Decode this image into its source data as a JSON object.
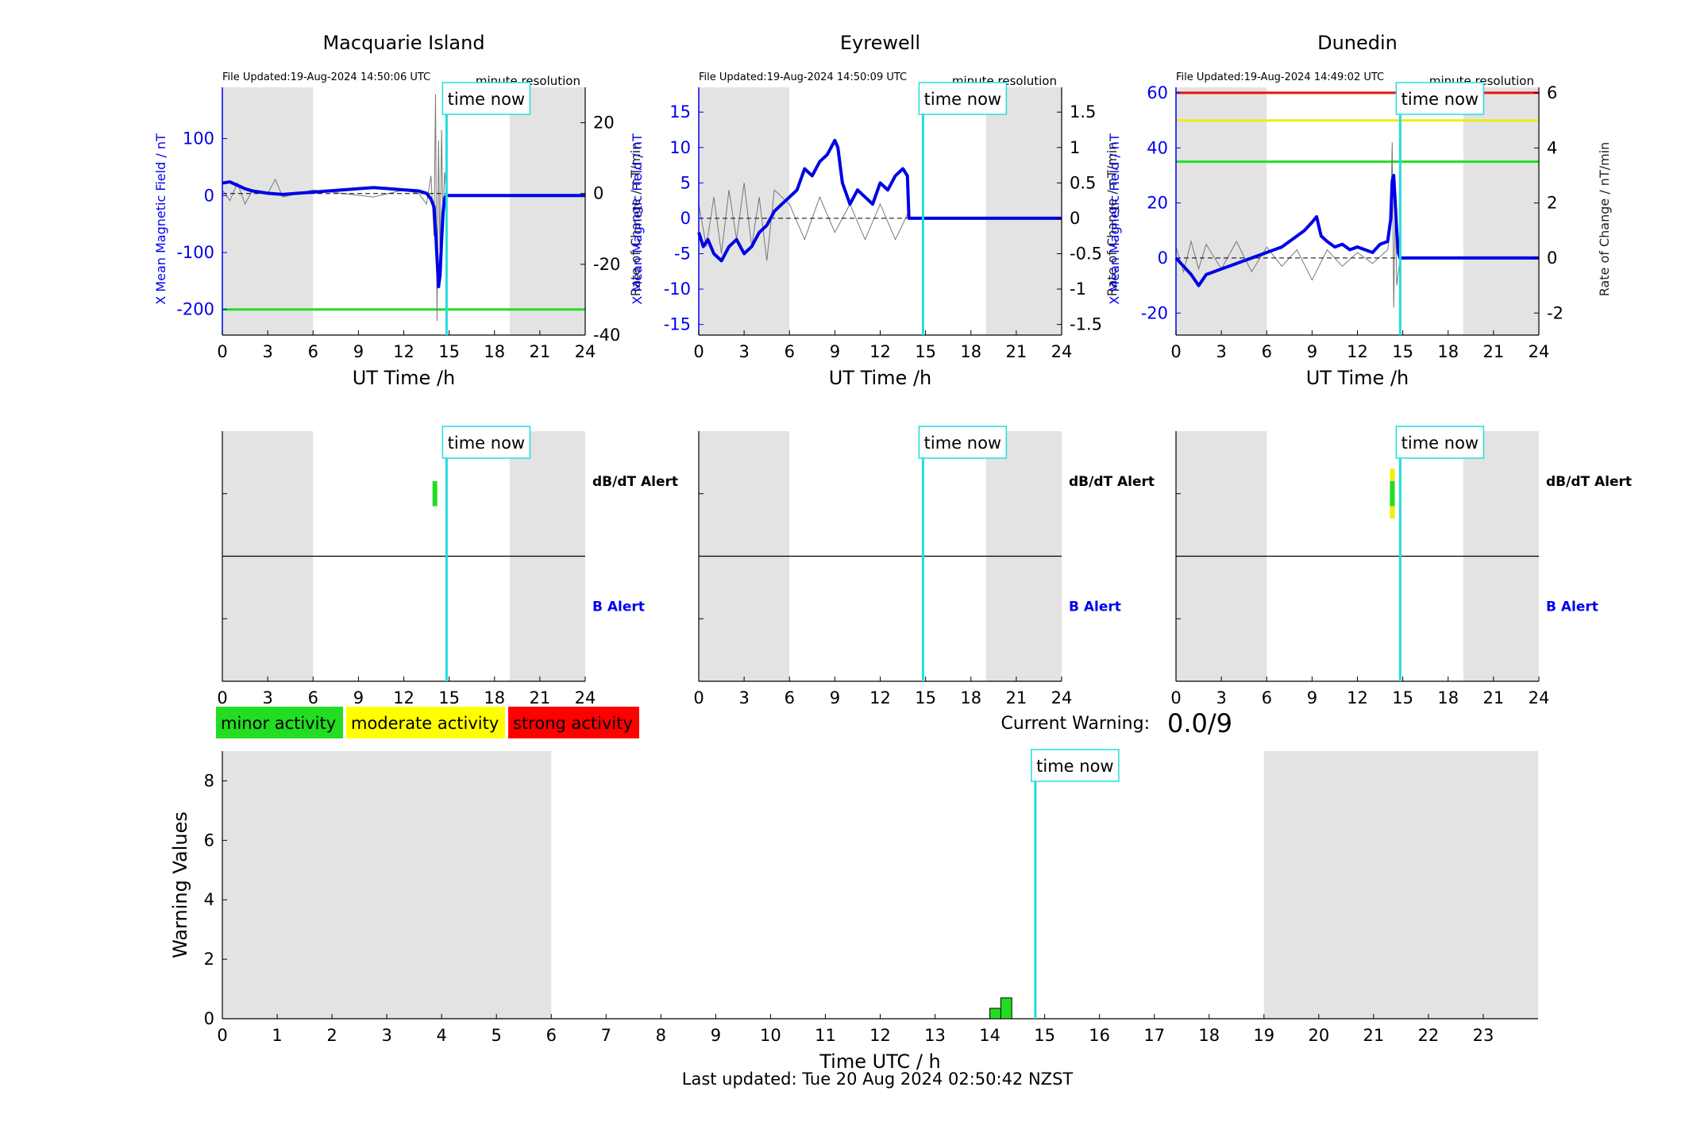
{
  "stations": [
    {
      "name": "Macquarie Island",
      "file_updated": "File Updated:19-Aug-2024 14:50:06 UTC",
      "resolution": "minute resolution",
      "ylim": [
        -245,
        190
      ],
      "yticks": [
        100,
        0,
        -100,
        -200
      ],
      "rylim": [
        -40,
        30
      ],
      "ryticks": [
        20,
        0,
        -20,
        -40
      ],
      "ylabel": "X Mean Magnetic Field / nT",
      "rlabel": "Rate of Change / nT/min",
      "threshold_lines": [
        {
          "value": -200,
          "color": "#22dd22"
        }
      ],
      "field": [
        [
          0,
          22
        ],
        [
          0.5,
          24
        ],
        [
          1,
          18
        ],
        [
          1.5,
          12
        ],
        [
          2,
          8
        ],
        [
          3,
          4
        ],
        [
          4,
          2
        ],
        [
          5,
          4
        ],
        [
          6,
          6
        ],
        [
          7,
          8
        ],
        [
          8,
          10
        ],
        [
          9,
          12
        ],
        [
          10,
          14
        ],
        [
          11,
          12
        ],
        [
          12,
          10
        ],
        [
          13,
          8
        ],
        [
          13.5,
          4
        ],
        [
          13.8,
          -6
        ],
        [
          14.0,
          -20
        ],
        [
          14.1,
          -60
        ],
        [
          14.2,
          -110
        ],
        [
          14.3,
          -160
        ],
        [
          14.4,
          -140
        ],
        [
          14.5,
          -80
        ],
        [
          14.6,
          -30
        ],
        [
          14.7,
          -5
        ],
        [
          14.83,
          0
        ],
        [
          24,
          0
        ]
      ],
      "rate": [
        [
          0,
          1
        ],
        [
          0.5,
          -2
        ],
        [
          1,
          3
        ],
        [
          1.5,
          -3
        ],
        [
          2,
          1
        ],
        [
          3,
          0
        ],
        [
          3.5,
          4
        ],
        [
          4,
          -1
        ],
        [
          5,
          0
        ],
        [
          6,
          1
        ],
        [
          8,
          0
        ],
        [
          10,
          -1
        ],
        [
          12,
          1
        ],
        [
          13,
          0
        ],
        [
          13.5,
          -3
        ],
        [
          13.8,
          5
        ],
        [
          14.0,
          -12
        ],
        [
          14.1,
          28
        ],
        [
          14.2,
          -36
        ],
        [
          14.3,
          15
        ],
        [
          14.4,
          -20
        ],
        [
          14.5,
          18
        ],
        [
          14.6,
          -8
        ],
        [
          14.7,
          6
        ],
        [
          14.83,
          0
        ]
      ],
      "dbdt_alert": {
        "start": 13.9,
        "end": 14.2,
        "levels": [
          "#22dd22"
        ]
      },
      "b_alert": null
    },
    {
      "name": "Eyrewell",
      "file_updated": "File Updated:19-Aug-2024 14:50:09 UTC",
      "resolution": "minute resolution",
      "ylim": [
        -16.5,
        18.5
      ],
      "yticks": [
        15,
        10,
        5,
        0,
        -5,
        -10,
        -15
      ],
      "rylim": [
        -1.65,
        1.85
      ],
      "ryticks": [
        1.5,
        1,
        0.5,
        0,
        -0.5,
        -1,
        -1.5
      ],
      "rytick_labels": [
        "1.5",
        "1",
        "0.5",
        "0",
        "-0.5",
        "-1",
        "-1.5"
      ],
      "ylabel": "X Mean Magnetic Field / nT",
      "rlabel": "Rate of Change / nT/min",
      "threshold_lines": [],
      "field": [
        [
          0,
          -2
        ],
        [
          0.3,
          -4
        ],
        [
          0.6,
          -3
        ],
        [
          1,
          -5
        ],
        [
          1.5,
          -6
        ],
        [
          2,
          -4
        ],
        [
          2.5,
          -3
        ],
        [
          3,
          -5
        ],
        [
          3.5,
          -4
        ],
        [
          4,
          -2
        ],
        [
          4.5,
          -1
        ],
        [
          5,
          1
        ],
        [
          5.5,
          2
        ],
        [
          6,
          3
        ],
        [
          6.5,
          4
        ],
        [
          7,
          7
        ],
        [
          7.5,
          6
        ],
        [
          8,
          8
        ],
        [
          8.5,
          9
        ],
        [
          9,
          11
        ],
        [
          9.2,
          10
        ],
        [
          9.5,
          5
        ],
        [
          10,
          2
        ],
        [
          10.5,
          4
        ],
        [
          11,
          3
        ],
        [
          11.5,
          2
        ],
        [
          12,
          5
        ],
        [
          12.5,
          4
        ],
        [
          13,
          6
        ],
        [
          13.5,
          7
        ],
        [
          13.8,
          6
        ],
        [
          13.9,
          0
        ],
        [
          24,
          0
        ]
      ],
      "rate": [
        [
          0,
          0.2
        ],
        [
          0.5,
          -0.4
        ],
        [
          1,
          0.3
        ],
        [
          1.5,
          -0.5
        ],
        [
          2,
          0.4
        ],
        [
          2.5,
          -0.3
        ],
        [
          3,
          0.5
        ],
        [
          3.5,
          -0.4
        ],
        [
          4,
          0.3
        ],
        [
          4.5,
          -0.6
        ],
        [
          5,
          0.4
        ],
        [
          6,
          0.2
        ],
        [
          7,
          -0.3
        ],
        [
          8,
          0.3
        ],
        [
          9,
          -0.2
        ],
        [
          10,
          0.2
        ],
        [
          11,
          -0.3
        ],
        [
          12,
          0.2
        ],
        [
          13,
          -0.3
        ],
        [
          13.9,
          0.1
        ]
      ],
      "dbdt_alert": null,
      "b_alert": null
    },
    {
      "name": "Dunedin",
      "file_updated": "File Updated:19-Aug-2024 14:49:02 UTC",
      "resolution": "minute resolution",
      "ylim": [
        -28,
        62
      ],
      "yticks": [
        60,
        40,
        20,
        0,
        -20
      ],
      "rylim": [
        -2.8,
        6.2
      ],
      "ryticks": [
        6,
        4,
        2,
        0,
        -2
      ],
      "ylabel": "X Mean Magnetic Field / nT",
      "rlabel": "Rate of Change / nT/min",
      "threshold_lines": [
        {
          "value": 60,
          "color": "#ee1111"
        },
        {
          "value": 50,
          "color": "#eeee11"
        },
        {
          "value": 35,
          "color": "#22dd22"
        }
      ],
      "field": [
        [
          0,
          0
        ],
        [
          0.5,
          -3
        ],
        [
          1,
          -6
        ],
        [
          1.5,
          -10
        ],
        [
          2,
          -6
        ],
        [
          2.5,
          -5
        ],
        [
          3,
          -4
        ],
        [
          3.5,
          -3
        ],
        [
          4,
          -2
        ],
        [
          4.5,
          -1
        ],
        [
          5,
          0
        ],
        [
          5.5,
          1
        ],
        [
          6,
          2
        ],
        [
          6.5,
          3
        ],
        [
          7,
          4
        ],
        [
          7.5,
          6
        ],
        [
          8,
          8
        ],
        [
          8.5,
          10
        ],
        [
          9,
          13
        ],
        [
          9.3,
          15
        ],
        [
          9.6,
          8
        ],
        [
          10,
          6
        ],
        [
          10.5,
          4
        ],
        [
          11,
          5
        ],
        [
          11.5,
          3
        ],
        [
          12,
          4
        ],
        [
          12.5,
          3
        ],
        [
          13,
          2
        ],
        [
          13.5,
          5
        ],
        [
          14,
          6
        ],
        [
          14.2,
          14
        ],
        [
          14.3,
          28
        ],
        [
          14.4,
          30
        ],
        [
          14.5,
          20
        ],
        [
          14.6,
          10
        ],
        [
          14.7,
          2
        ],
        [
          14.82,
          0
        ],
        [
          24,
          0
        ]
      ],
      "rate": [
        [
          0,
          0.4
        ],
        [
          0.5,
          -0.5
        ],
        [
          1,
          0.6
        ],
        [
          1.5,
          -0.4
        ],
        [
          2,
          0.5
        ],
        [
          3,
          -0.4
        ],
        [
          4,
          0.6
        ],
        [
          5,
          -0.5
        ],
        [
          6,
          0.4
        ],
        [
          7,
          -0.3
        ],
        [
          8,
          0.3
        ],
        [
          9,
          -0.8
        ],
        [
          10,
          0.3
        ],
        [
          11,
          -0.3
        ],
        [
          12,
          0.2
        ],
        [
          13,
          -0.2
        ],
        [
          14,
          0.3
        ],
        [
          14.2,
          1.2
        ],
        [
          14.3,
          4.2
        ],
        [
          14.4,
          -1.8
        ],
        [
          14.5,
          2
        ],
        [
          14.6,
          -1
        ],
        [
          14.82,
          0
        ]
      ],
      "dbdt_alert": {
        "start": 14.15,
        "end": 14.45,
        "levels": [
          "#eeee11",
          "#22dd22",
          "#eeee11"
        ]
      },
      "b_alert": null
    }
  ],
  "hour_ticks": [
    0,
    3,
    6,
    9,
    12,
    15,
    18,
    21,
    24
  ],
  "night_shading": [
    [
      0,
      6
    ],
    [
      19,
      24
    ]
  ],
  "time_now_hour": 14.83,
  "time_now_label": "time now",
  "xlabel": "UT Time /h",
  "alert_labels": {
    "dbdt": "dB/dT Alert",
    "b": "B Alert"
  },
  "legend": [
    {
      "label": "minor activity",
      "color": "#22dd22"
    },
    {
      "label": "moderate activity",
      "color": "#ffff00"
    },
    {
      "label": "strong activity",
      "color": "#ff0000"
    }
  ],
  "current_warning_label": "Current Warning:",
  "current_warning_value": "0.0/9",
  "chart_data": {
    "type": "bar",
    "title": "",
    "xlabel": "Time UTC / h",
    "ylabel": "Warning Values",
    "xlim": [
      0,
      24
    ],
    "ylim": [
      0,
      9
    ],
    "xticks": [
      0,
      1,
      2,
      3,
      4,
      5,
      6,
      7,
      8,
      9,
      10,
      11,
      12,
      13,
      14,
      15,
      16,
      17,
      18,
      19,
      20,
      21,
      22,
      23
    ],
    "yticks": [
      0,
      2,
      4,
      6,
      8
    ],
    "night_shading": [
      [
        0,
        6
      ],
      [
        19,
        24
      ]
    ],
    "series": [
      {
        "values": [
          {
            "x": 14.1,
            "value": 0.35
          },
          {
            "x": 14.3,
            "value": 0.7
          }
        ],
        "color": "#22dd22"
      }
    ]
  },
  "footer": "Last updated: Tue 20 Aug 2024 02:50:42 NZST"
}
